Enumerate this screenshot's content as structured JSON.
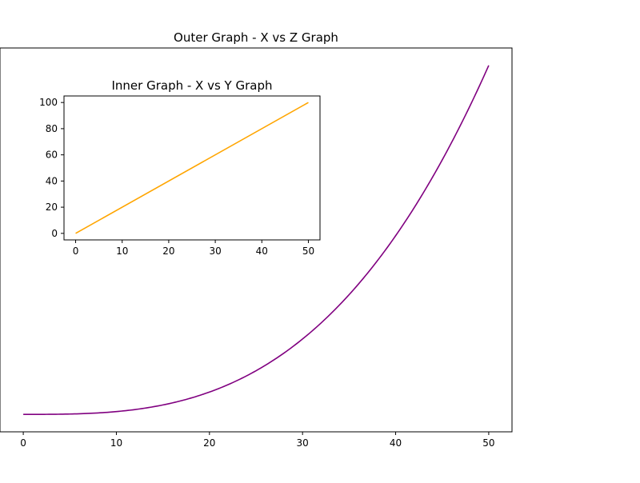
{
  "chart_data": [
    {
      "type": "line",
      "title": "Outer Graph - X vs Z Graph",
      "xlabel": "",
      "ylabel": "",
      "xlim": [
        -2.5,
        52.5
      ],
      "ylim": [
        -6250,
        131250
      ],
      "xticks": [
        0,
        10,
        20,
        30,
        40,
        50
      ],
      "yticks": [],
      "grid": false,
      "series": [
        {
          "color": "#800080",
          "function": "x^3",
          "x": [
            0,
            2,
            4,
            6,
            8,
            10,
            12,
            14,
            16,
            18,
            20,
            22,
            24,
            26,
            28,
            30,
            32,
            34,
            36,
            38,
            40,
            42,
            44,
            46,
            48,
            50
          ],
          "y": [
            0,
            8,
            64,
            216,
            512,
            1000,
            1728,
            2744,
            4096,
            5832,
            8000,
            10648,
            13824,
            17576,
            21952,
            27000,
            32768,
            39304,
            46656,
            54872,
            64000,
            74088,
            85184,
            97336,
            110592,
            125000
          ]
        }
      ]
    },
    {
      "type": "line",
      "title": "Inner Graph - X vs Y Graph",
      "xlabel": "",
      "ylabel": "",
      "xlim": [
        -2.5,
        52.5
      ],
      "ylim": [
        -5,
        105
      ],
      "xticks": [
        0,
        10,
        20,
        30,
        40,
        50
      ],
      "yticks": [
        0,
        20,
        40,
        60,
        80,
        100
      ],
      "grid": false,
      "series": [
        {
          "color": "#FFA500",
          "x": [
            0,
            50
          ],
          "y": [
            0,
            100
          ]
        }
      ]
    }
  ]
}
